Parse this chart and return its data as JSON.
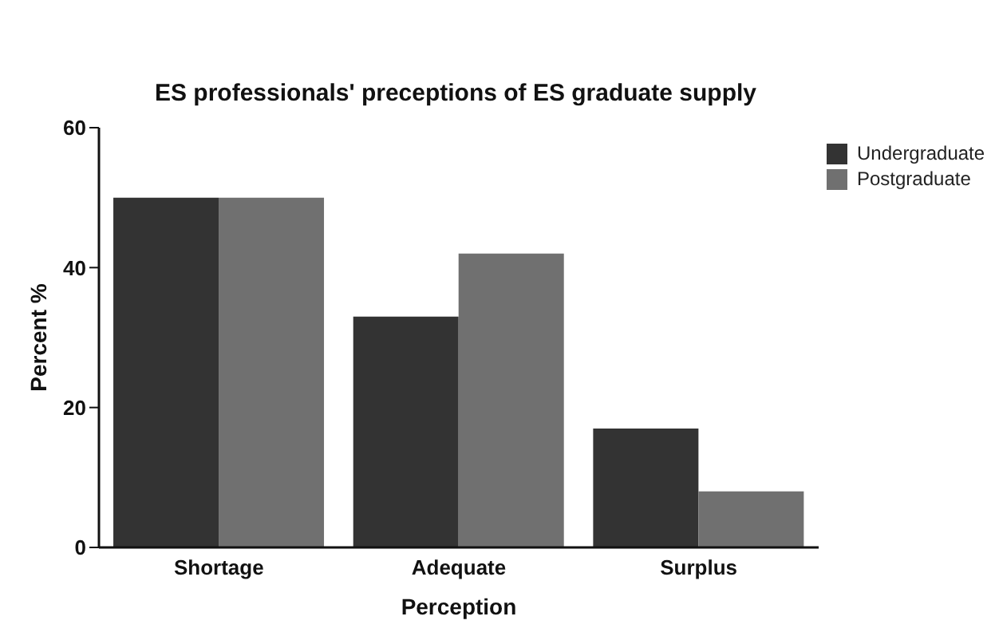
{
  "chart_data": {
    "type": "bar",
    "title": "ES professionals' preceptions of ES graduate supply",
    "xlabel": "Perception",
    "ylabel": "Percent %",
    "categories": [
      "Shortage",
      "Adequate",
      "Surplus"
    ],
    "series": [
      {
        "name": "Undergraduate",
        "color": "#333333",
        "values": [
          50,
          33,
          17
        ]
      },
      {
        "name": "Postgraduate",
        "color": "#707070",
        "values": [
          50,
          42,
          8
        ]
      }
    ],
    "ylim": [
      0,
      60
    ],
    "yticks": [
      0,
      20,
      40,
      60
    ],
    "grid": false,
    "legend": "top right"
  }
}
